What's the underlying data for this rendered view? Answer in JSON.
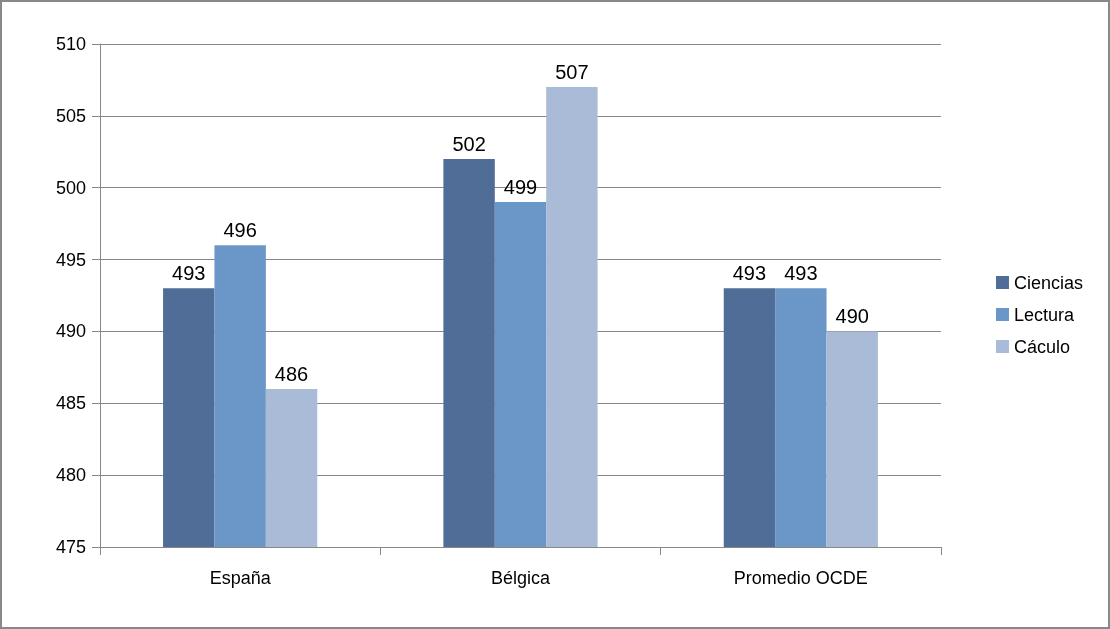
{
  "chart_data": {
    "type": "bar",
    "categories": [
      "España",
      "Bélgica",
      "Promedio OCDE"
    ],
    "series": [
      {
        "name": "Ciencias",
        "color": "#4f6d96",
        "values": [
          493,
          502,
          493
        ]
      },
      {
        "name": "Lectura",
        "color": "#6b96c8",
        "values": [
          496,
          499,
          493
        ]
      },
      {
        "name": "Cáculo",
        "color": "#a9bbd6",
        "values": [
          486,
          507,
          490
        ]
      }
    ],
    "ylim": [
      475,
      510
    ],
    "yticks": [
      475,
      480,
      485,
      490,
      495,
      500,
      505,
      510
    ],
    "grid": "y",
    "legend": "right",
    "data_labels": true
  }
}
